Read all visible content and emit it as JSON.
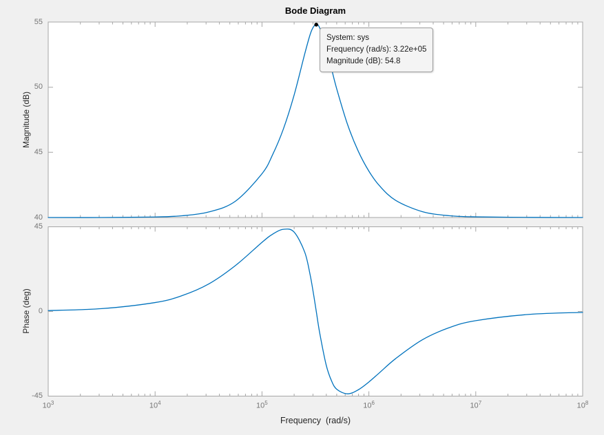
{
  "figure": {
    "background_color": "#f0f0f0",
    "axis_line_color": "#a6a6a6",
    "tick_label_color": "#757575",
    "axis_label_color": "#262626"
  },
  "chart_data": {
    "type": "line",
    "title": "Bode Diagram",
    "x_axis": {
      "label": "Frequency  (rad/s)",
      "scale": "log10",
      "range_log10": [
        3,
        8
      ],
      "major_tick_exponents": [
        3,
        4,
        5,
        6,
        7,
        8
      ],
      "minor_ticks": "log decades 2-9",
      "unit": "rad/s"
    },
    "subplots": [
      {
        "id": "magnitude",
        "ylabel": "Magnitude (dB)",
        "ylim": [
          40,
          55
        ],
        "ytick_labels": [
          "40",
          "45",
          "50",
          "55"
        ],
        "ytick_values": [
          40,
          45,
          50,
          55
        ],
        "grid": false
      },
      {
        "id": "phase",
        "ylabel": "Phase (deg)",
        "ylim": [
          -45,
          45
        ],
        "ytick_labels": [
          "-45",
          "0",
          "45"
        ],
        "ytick_values": [
          -45,
          0,
          45
        ],
        "grid": false
      }
    ],
    "series": {
      "name": "sys",
      "color": "#0072bd",
      "log10_w": [
        3.0,
        3.5,
        4.0,
        4.25,
        4.5,
        4.75,
        5.0,
        5.1,
        5.2,
        5.3,
        5.4,
        5.45,
        5.48,
        5.508,
        5.54,
        5.6,
        5.65,
        5.7,
        5.8,
        5.9,
        6.0,
        6.1,
        6.25,
        6.5,
        6.75,
        7.0,
        7.5,
        8.0
      ],
      "magnitude_db": [
        40.0,
        40.0,
        40.04,
        40.13,
        40.42,
        41.24,
        43.36,
        44.83,
        46.79,
        49.38,
        52.56,
        54.03,
        54.61,
        54.81,
        54.55,
        53.06,
        51.44,
        49.85,
        47.15,
        45.1,
        43.56,
        42.43,
        41.32,
        40.45,
        40.14,
        40.05,
        40.01,
        40.0
      ],
      "phase_deg": [
        0.47,
        1.5,
        4.73,
        8.36,
        14.55,
        24.33,
        36.74,
        41.09,
        43.66,
        42.23,
        31.49,
        19.58,
        9.97,
        0.0,
        -11.44,
        -28.32,
        -36.79,
        -41.37,
        -43.79,
        -41.66,
        -37.49,
        -32.54,
        -25.08,
        -15.06,
        -8.66,
        -4.91,
        -1.56,
        -0.49
      ],
      "magnitude_asymptote_db": 40,
      "peak": {
        "frequency_rad_s": "3.22e+05",
        "magnitude_db": 54.8
      }
    },
    "datatip": {
      "lines": [
        "System: sys",
        "Frequency (rad/s): 3.22e+05",
        "Magnitude (dB): 54.8"
      ],
      "log10_w": 5.5079,
      "magnitude_db": 54.8,
      "marker_color": "#000000"
    }
  }
}
